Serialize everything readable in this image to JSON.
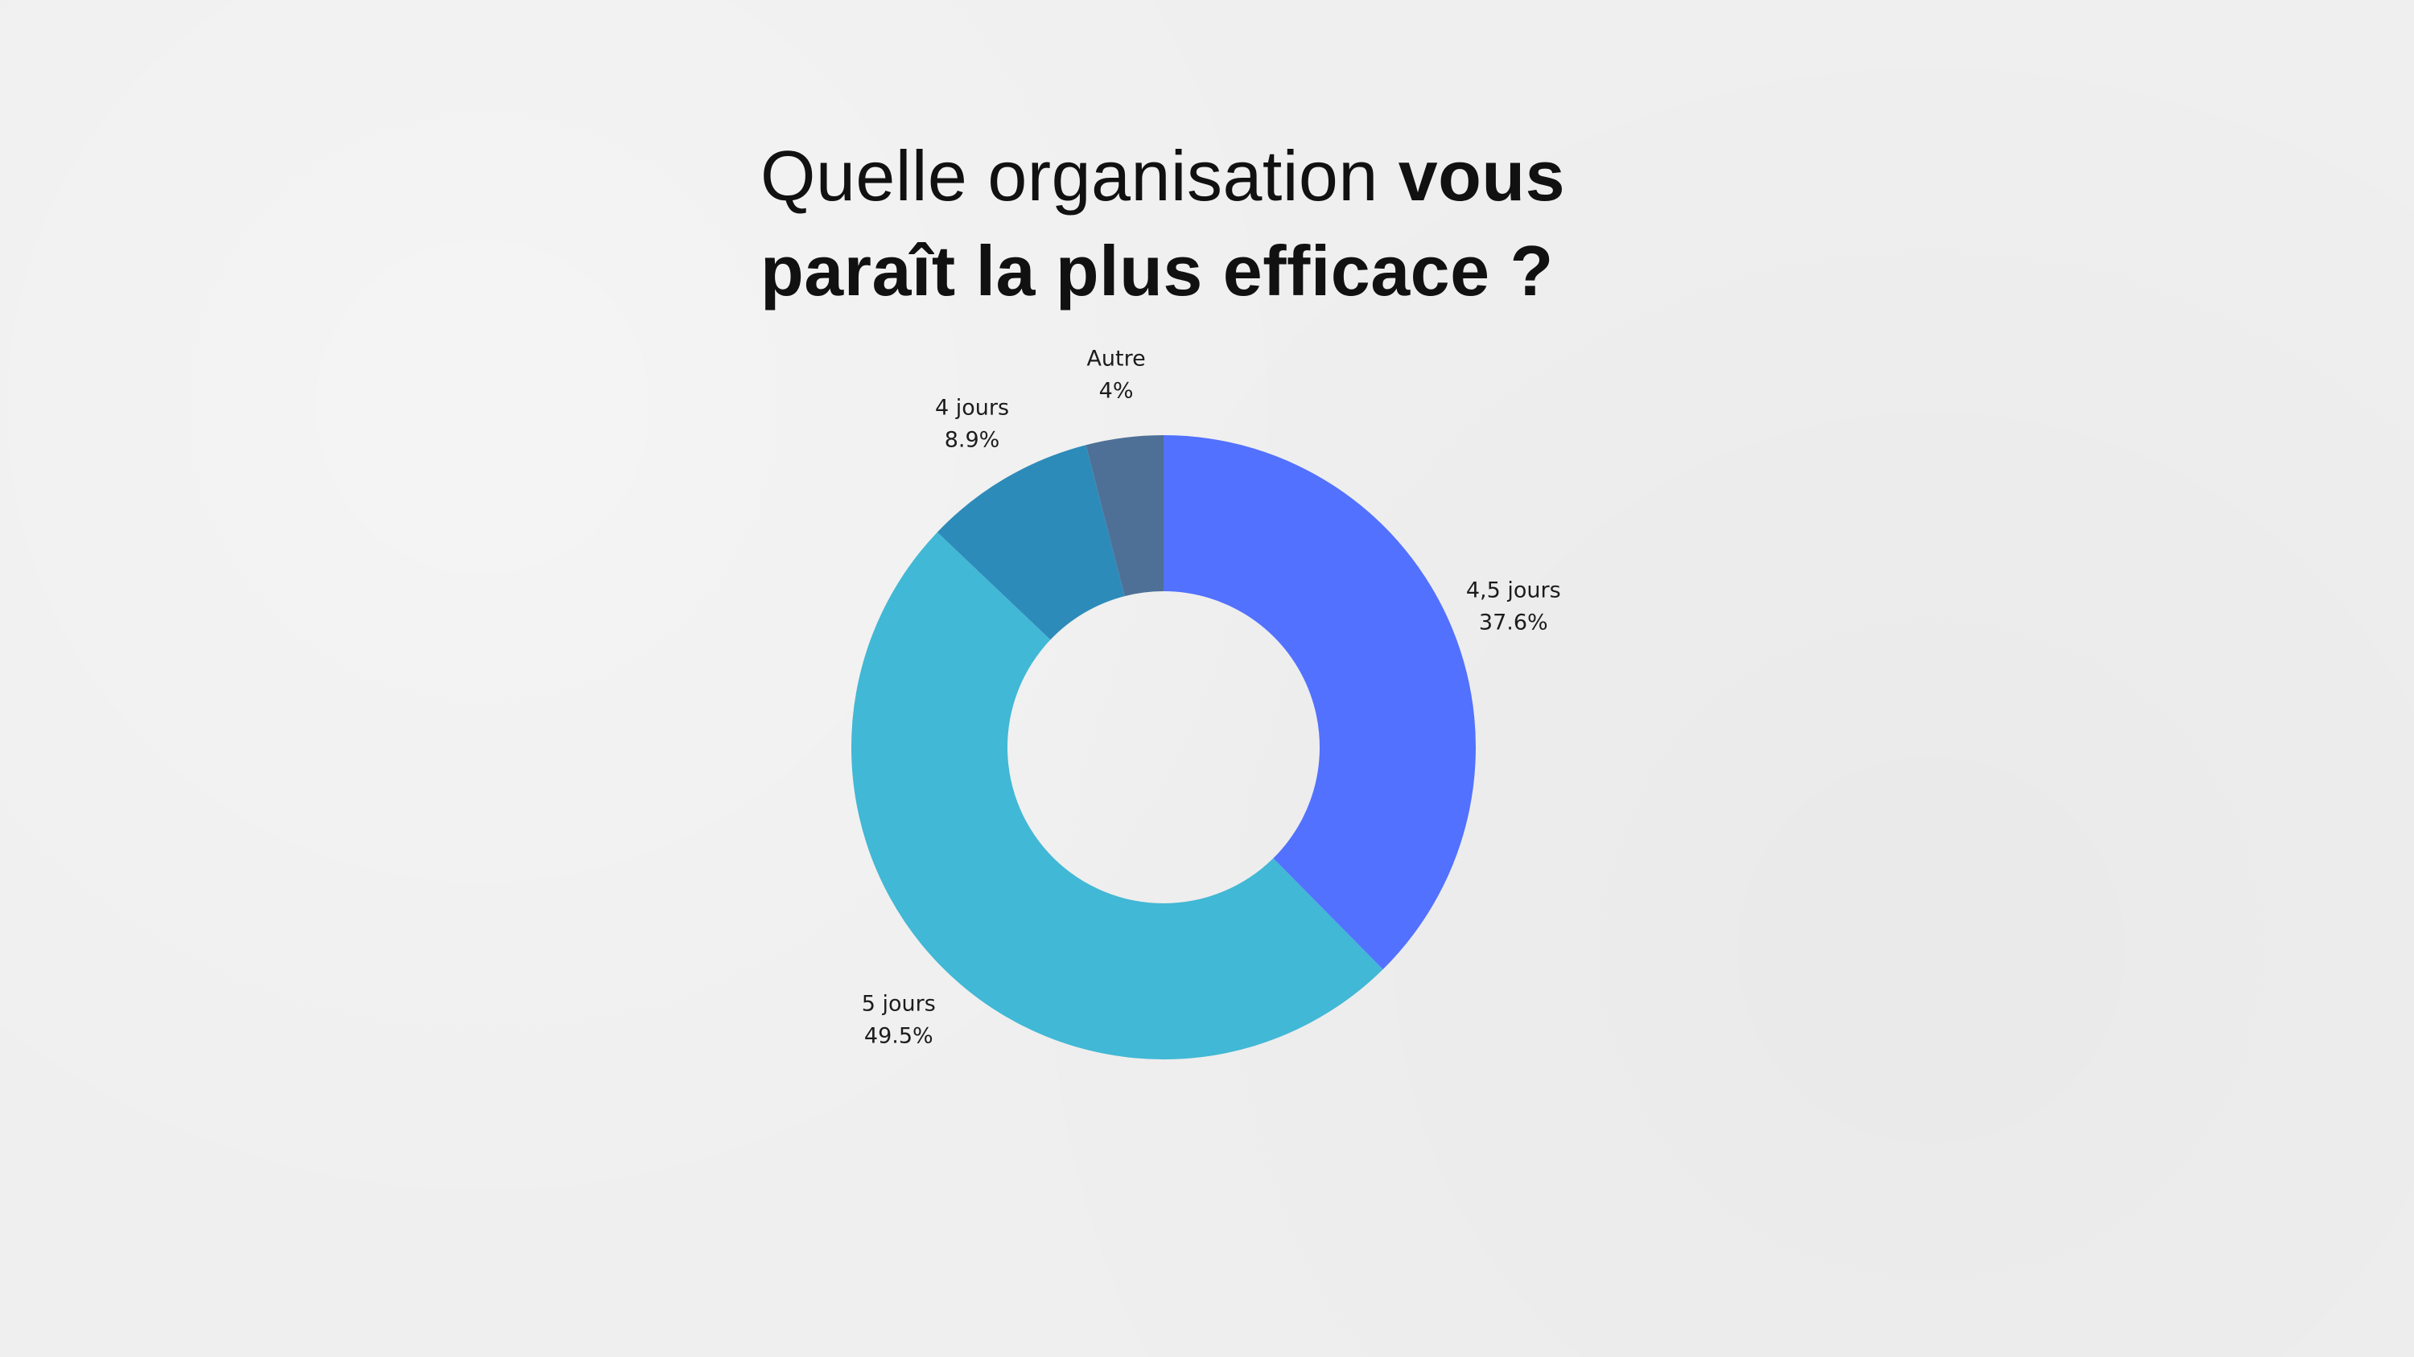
{
  "title": {
    "part1": "Quelle organisation ",
    "part2": "vous",
    "part3": "paraît la plus efficace ?"
  },
  "chart_data": {
    "type": "pie",
    "donut": true,
    "title": "Quelle organisation vous paraît la plus efficace ?",
    "slices": [
      {
        "label": "4,5 jours",
        "value": 37.6,
        "value_label": "37.6%",
        "color": "#5271ff"
      },
      {
        "label": "5 jours",
        "value": 49.5,
        "value_label": "49.5%",
        "color": "#41b8d5"
      },
      {
        "label": "4 jours",
        "value": 8.9,
        "value_label": "8.9%",
        "color": "#2d8bba"
      },
      {
        "label": "Autre",
        "value": 4,
        "value_label": "4%",
        "color": "#4e7096"
      }
    ],
    "start": "top",
    "direction": "clockwise",
    "legend": "none"
  }
}
